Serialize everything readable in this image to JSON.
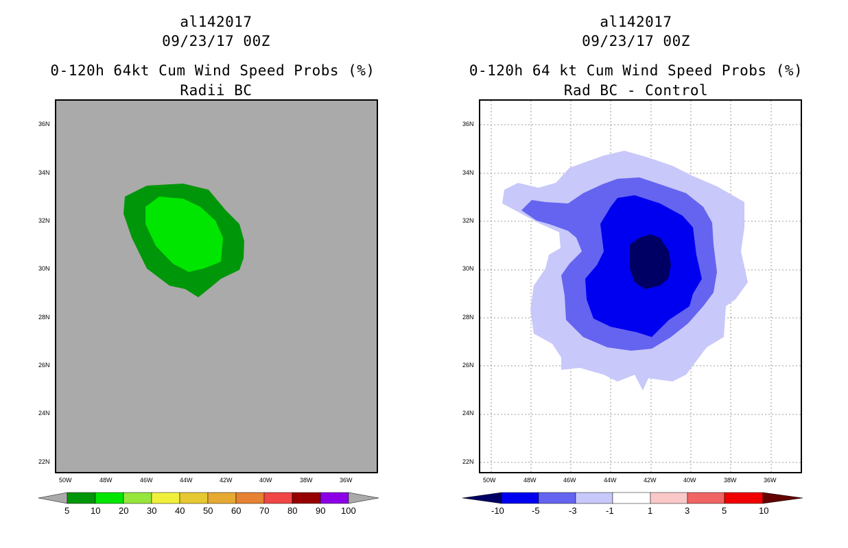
{
  "left_panel": {
    "storm_id": "al142017",
    "datetime": "09/23/17 00Z",
    "product": "0-120h 64kt Cum Wind Speed Probs (%)",
    "subtitle": "Radii BC",
    "lat_labels": [
      "36N",
      "34N",
      "32N",
      "30N",
      "28N",
      "26N",
      "24N",
      "22N"
    ],
    "lon_labels": [
      "50W",
      "48W",
      "46W",
      "44W",
      "42W",
      "40W",
      "38W",
      "36W"
    ],
    "colorbar": {
      "ticks": [
        "5",
        "10",
        "20",
        "30",
        "40",
        "50",
        "60",
        "70",
        "80",
        "90",
        "100"
      ],
      "colors": [
        "#00960a",
        "#00e600",
        "#96e63c",
        "#f0f03c",
        "#e6c832",
        "#e6aa32",
        "#e68232",
        "#f04646",
        "#960000",
        "#8c00e6"
      ],
      "under_color": "#aaaaaa",
      "over_color": "#aaaaaa"
    },
    "background_color": "#aaaaaa",
    "contour_colors": [
      "#00960a",
      "#00e600"
    ]
  },
  "right_panel": {
    "storm_id": "al142017",
    "datetime": "09/23/17 00Z",
    "product": "0-120h 64 kt Cum Wind Speed Probs (%)",
    "subtitle": "Rad BC - Control",
    "lat_labels": [
      "36N",
      "34N",
      "32N",
      "30N",
      "28N",
      "26N",
      "24N",
      "22N"
    ],
    "lon_labels": [
      "50W",
      "48W",
      "46W",
      "44W",
      "42W",
      "40W",
      "38W",
      "36W"
    ],
    "colorbar": {
      "ticks": [
        "-10",
        "-5",
        "-3",
        "-1",
        "1",
        "3",
        "5",
        "10"
      ],
      "colors": [
        "#0000f0",
        "#6464f0",
        "#c8c8fa",
        "#ffffff",
        "#fac8c8",
        "#f06464",
        "#f00000"
      ],
      "under_color": "#000064",
      "over_color": "#640000"
    },
    "contour_colors": [
      "#c8c8fa",
      "#6464f0",
      "#0000f0",
      "#000064"
    ]
  }
}
